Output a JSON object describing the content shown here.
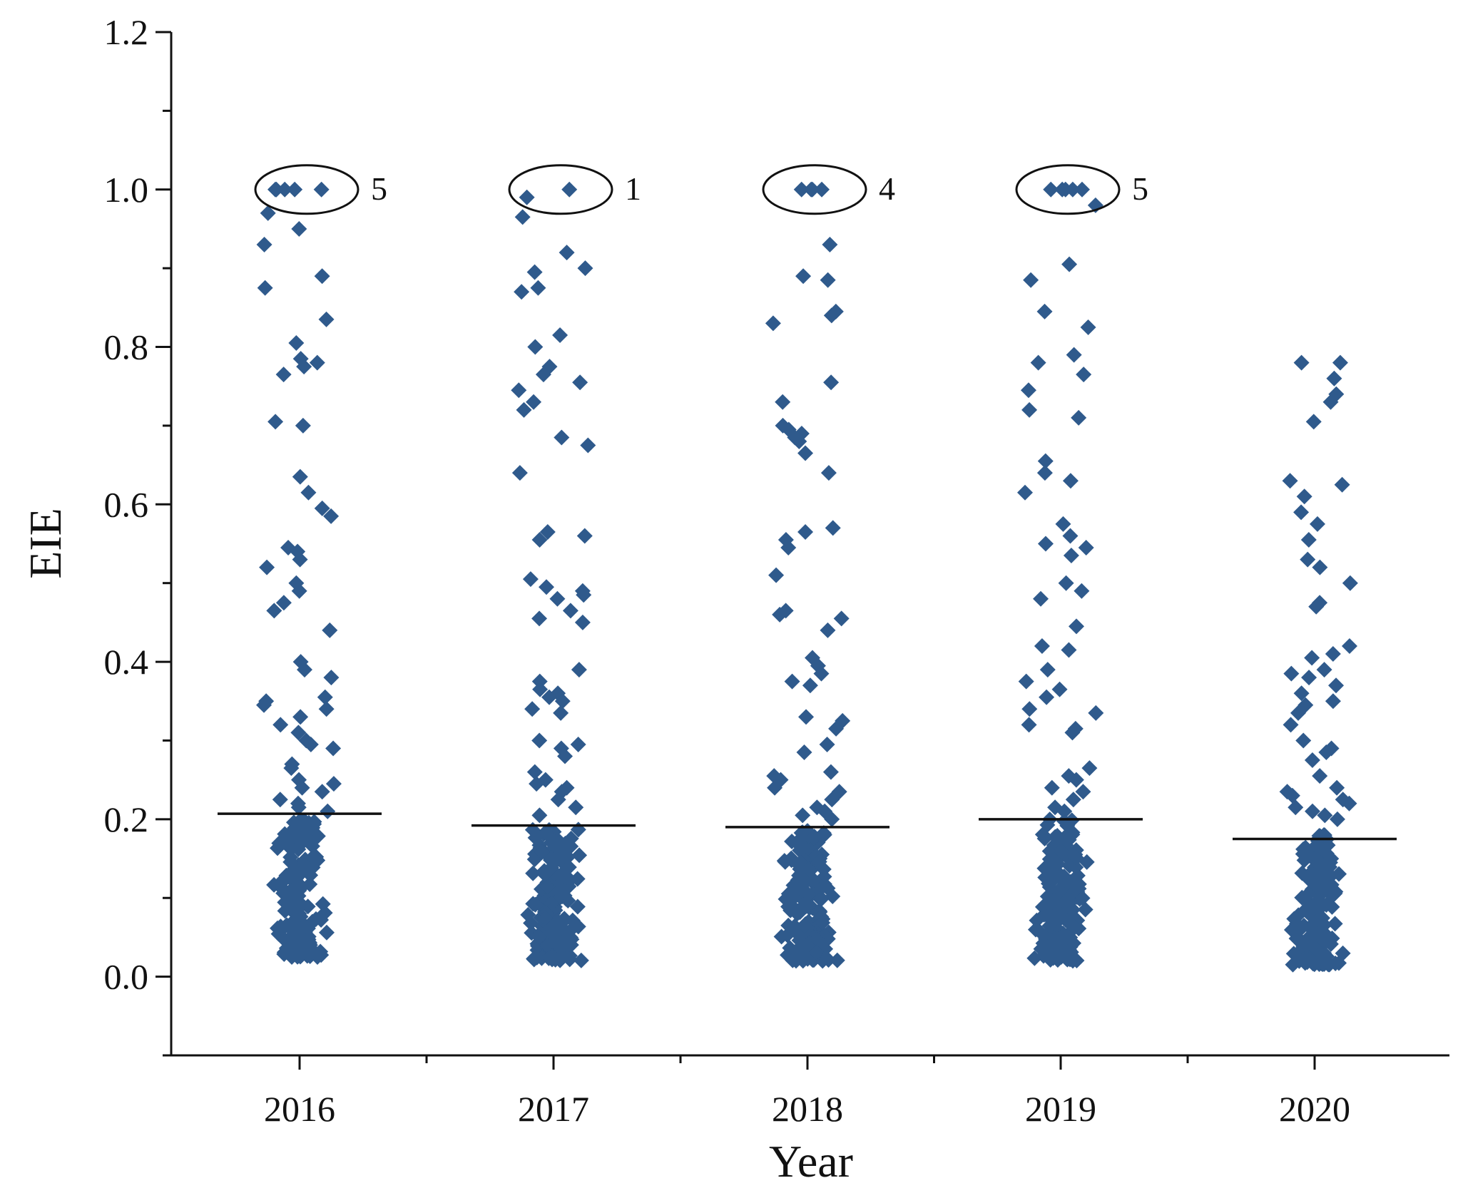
{
  "chart_data": {
    "type": "scatter",
    "title": "",
    "xlabel": "Year",
    "ylabel": "EIE",
    "categories": [
      "2016",
      "2017",
      "2018",
      "2019",
      "2020"
    ],
    "ylim": [
      -0.1,
      1.2
    ],
    "yticks": [
      "0.0",
      "0.2",
      "0.4",
      "0.6",
      "0.8",
      "1.0",
      "1.2"
    ],
    "ytick_values": [
      0.0,
      0.2,
      0.4,
      0.6,
      0.8,
      1.0,
      1.2
    ],
    "marker": "diamond",
    "colors": {
      "points": "#2f5a8c",
      "mean_line": "#111111",
      "axis": "#111111"
    },
    "grid": false,
    "means": [
      0.207,
      0.192,
      0.19,
      0.2,
      0.175
    ],
    "annotations": [
      {
        "category": "2016",
        "value": 1.0,
        "label": "5"
      },
      {
        "category": "2017",
        "value": 1.0,
        "label": "1"
      },
      {
        "category": "2018",
        "value": 1.0,
        "label": "4"
      },
      {
        "category": "2019",
        "value": 1.0,
        "label": "5"
      }
    ],
    "series": [
      {
        "category": "2016",
        "upper_values": [
          1.0,
          1.0,
          1.0,
          1.0,
          1.0,
          0.97,
          0.95,
          0.93,
          0.89,
          0.875,
          0.835,
          0.805,
          0.785,
          0.78,
          0.775,
          0.765,
          0.705,
          0.7,
          0.635,
          0.615,
          0.595,
          0.585,
          0.545,
          0.54,
          0.53,
          0.52,
          0.5,
          0.49,
          0.475,
          0.465,
          0.44,
          0.4,
          0.39,
          0.38,
          0.355,
          0.35,
          0.345,
          0.34,
          0.33,
          0.32,
          0.31,
          0.3,
          0.295,
          0.29,
          0.27,
          0.265,
          0.25,
          0.245,
          0.24,
          0.235,
          0.225,
          0.22,
          0.215,
          0.21
        ]
      },
      {
        "category": "2017",
        "upper_values": [
          1.0,
          0.99,
          0.965,
          0.92,
          0.9,
          0.895,
          0.875,
          0.87,
          0.815,
          0.8,
          0.775,
          0.765,
          0.755,
          0.745,
          0.73,
          0.72,
          0.685,
          0.675,
          0.64,
          0.565,
          0.56,
          0.555,
          0.505,
          0.495,
          0.49,
          0.485,
          0.48,
          0.465,
          0.455,
          0.45,
          0.39,
          0.375,
          0.365,
          0.36,
          0.355,
          0.35,
          0.34,
          0.335,
          0.3,
          0.295,
          0.29,
          0.28,
          0.26,
          0.25,
          0.245,
          0.24,
          0.235,
          0.225,
          0.215,
          0.205
        ]
      },
      {
        "category": "2018",
        "upper_values": [
          1.0,
          1.0,
          1.0,
          1.0,
          0.93,
          0.89,
          0.885,
          0.845,
          0.84,
          0.83,
          0.755,
          0.73,
          0.7,
          0.695,
          0.69,
          0.685,
          0.68,
          0.665,
          0.64,
          0.57,
          0.565,
          0.555,
          0.545,
          0.51,
          0.465,
          0.46,
          0.455,
          0.44,
          0.405,
          0.395,
          0.385,
          0.375,
          0.37,
          0.33,
          0.325,
          0.315,
          0.295,
          0.285,
          0.26,
          0.255,
          0.25,
          0.24,
          0.235,
          0.225,
          0.215,
          0.21,
          0.205,
          0.2
        ]
      },
      {
        "category": "2019",
        "upper_values": [
          1.0,
          1.0,
          1.0,
          1.0,
          1.0,
          0.98,
          0.905,
          0.885,
          0.845,
          0.825,
          0.79,
          0.78,
          0.765,
          0.745,
          0.72,
          0.71,
          0.655,
          0.64,
          0.63,
          0.615,
          0.575,
          0.56,
          0.55,
          0.545,
          0.535,
          0.5,
          0.49,
          0.48,
          0.445,
          0.42,
          0.415,
          0.39,
          0.375,
          0.365,
          0.355,
          0.34,
          0.335,
          0.32,
          0.315,
          0.31,
          0.265,
          0.255,
          0.25,
          0.24,
          0.235,
          0.225,
          0.215,
          0.21
        ]
      },
      {
        "category": "2020",
        "upper_values": [
          0.78,
          0.78,
          0.76,
          0.74,
          0.73,
          0.705,
          0.63,
          0.625,
          0.61,
          0.59,
          0.575,
          0.555,
          0.53,
          0.52,
          0.5,
          0.475,
          0.47,
          0.42,
          0.41,
          0.405,
          0.39,
          0.385,
          0.38,
          0.37,
          0.36,
          0.35,
          0.345,
          0.335,
          0.32,
          0.3,
          0.29,
          0.285,
          0.275,
          0.255,
          0.24,
          0.235,
          0.23,
          0.225,
          0.22,
          0.215,
          0.21,
          0.205,
          0.2
        ]
      }
    ],
    "dense_cluster_ranges": [
      {
        "category": "2016",
        "min": 0.025,
        "max": 0.2,
        "count": 170
      },
      {
        "category": "2017",
        "min": 0.02,
        "max": 0.19,
        "count": 170
      },
      {
        "category": "2018",
        "min": 0.02,
        "max": 0.19,
        "count": 170
      },
      {
        "category": "2019",
        "min": 0.02,
        "max": 0.2,
        "count": 170
      },
      {
        "category": "2020",
        "min": 0.015,
        "max": 0.18,
        "count": 170
      }
    ]
  }
}
